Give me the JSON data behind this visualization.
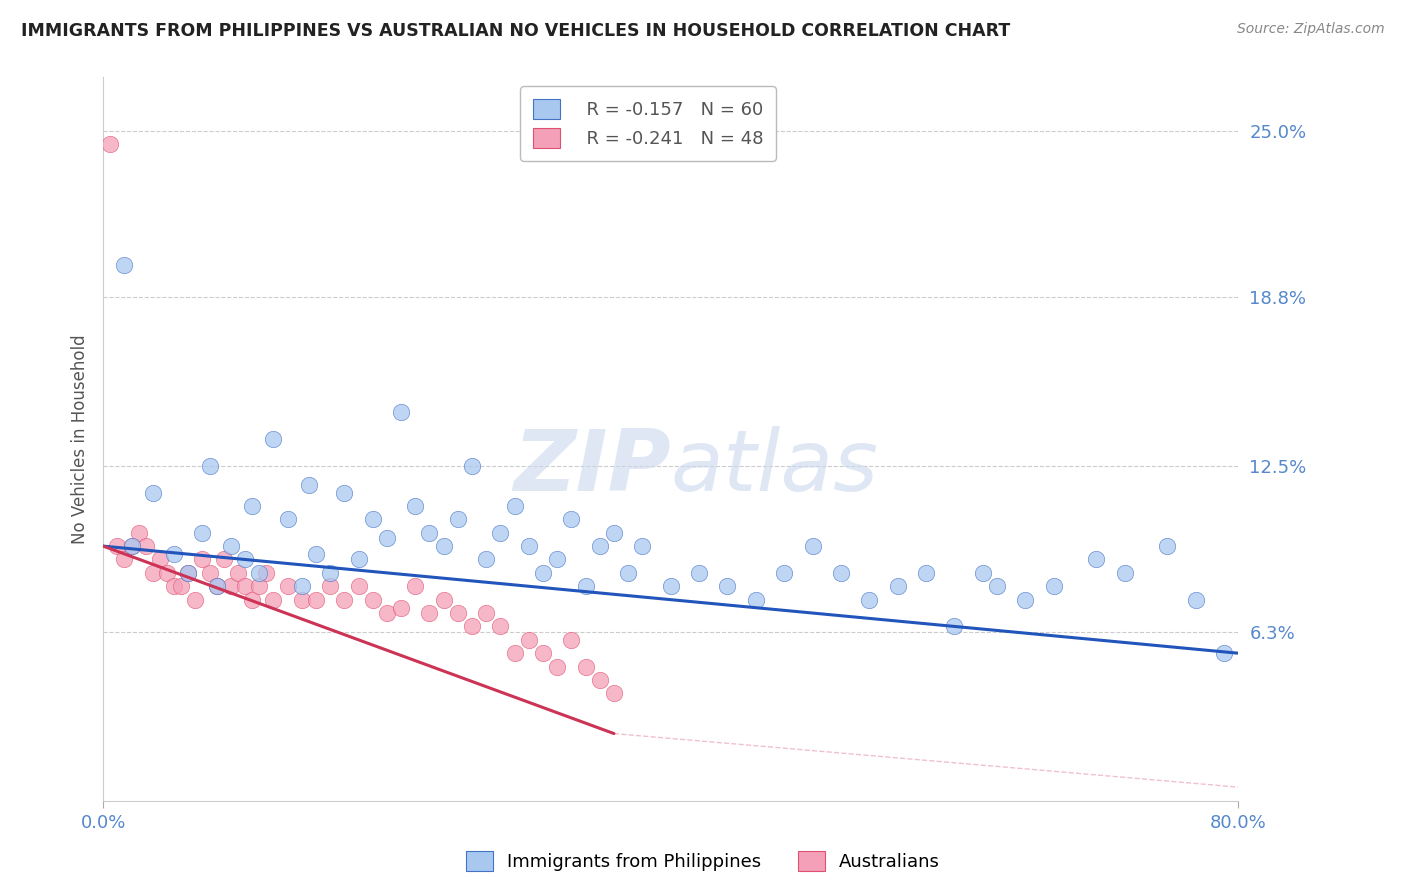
{
  "title": "IMMIGRANTS FROM PHILIPPINES VS AUSTRALIAN NO VEHICLES IN HOUSEHOLD CORRELATION CHART",
  "source": "Source: ZipAtlas.com",
  "ylabel": "No Vehicles in Household",
  "ytick_values": [
    6.3,
    12.5,
    18.8,
    25.0
  ],
  "xmin": 0.0,
  "xmax": 80.0,
  "ymin": 0.0,
  "ymax": 27.0,
  "blue_label": "Immigrants from Philippines",
  "pink_label": "Australians",
  "blue_r": "R = -0.157",
  "blue_n": "N = 60",
  "pink_r": "R = -0.241",
  "pink_n": "N = 48",
  "blue_color": "#a8c8f0",
  "pink_color": "#f4a0b8",
  "blue_edge_color": "#4472c4",
  "pink_edge_color": "#e05070",
  "blue_line_color": "#2255bb",
  "pink_line_color": "#cc3355",
  "title_color": "#222222",
  "source_color": "#888888",
  "axis_label_color": "#555555",
  "tick_color": "#5588cc",
  "grid_color": "#cccccc",
  "watermark_color": "#ccd8ee",
  "blue_scatter_x": [
    1.5,
    2.0,
    3.5,
    5.0,
    6.0,
    7.0,
    7.5,
    8.0,
    9.0,
    10.0,
    10.5,
    11.0,
    12.0,
    13.0,
    14.0,
    14.5,
    15.0,
    16.0,
    17.0,
    18.0,
    19.0,
    20.0,
    21.0,
    22.0,
    23.0,
    24.0,
    25.0,
    26.0,
    27.0,
    28.0,
    29.0,
    30.0,
    31.0,
    32.0,
    33.0,
    34.0,
    35.0,
    36.0,
    37.0,
    38.0,
    40.0,
    42.0,
    44.0,
    46.0,
    48.0,
    50.0,
    52.0,
    54.0,
    56.0,
    58.0,
    60.0,
    62.0,
    63.0,
    65.0,
    67.0,
    70.0,
    72.0,
    75.0,
    77.0,
    79.0
  ],
  "blue_scatter_y": [
    20.0,
    9.5,
    11.5,
    9.2,
    8.5,
    10.0,
    12.5,
    8.0,
    9.5,
    9.0,
    11.0,
    8.5,
    13.5,
    10.5,
    8.0,
    11.8,
    9.2,
    8.5,
    11.5,
    9.0,
    10.5,
    9.8,
    14.5,
    11.0,
    10.0,
    9.5,
    10.5,
    12.5,
    9.0,
    10.0,
    11.0,
    9.5,
    8.5,
    9.0,
    10.5,
    8.0,
    9.5,
    10.0,
    8.5,
    9.5,
    8.0,
    8.5,
    8.0,
    7.5,
    8.5,
    9.5,
    8.5,
    7.5,
    8.0,
    8.5,
    6.5,
    8.5,
    8.0,
    7.5,
    8.0,
    9.0,
    8.5,
    9.5,
    7.5,
    5.5
  ],
  "pink_scatter_x": [
    0.5,
    1.0,
    1.5,
    2.0,
    2.5,
    3.0,
    3.5,
    4.0,
    4.5,
    5.0,
    5.5,
    6.0,
    6.5,
    7.0,
    7.5,
    8.0,
    8.5,
    9.0,
    9.5,
    10.0,
    10.5,
    11.0,
    11.5,
    12.0,
    13.0,
    14.0,
    15.0,
    16.0,
    17.0,
    18.0,
    19.0,
    20.0,
    21.0,
    22.0,
    23.0,
    24.0,
    25.0,
    26.0,
    27.0,
    28.0,
    29.0,
    30.0,
    31.0,
    32.0,
    33.0,
    34.0,
    35.0,
    36.0
  ],
  "pink_scatter_y": [
    24.5,
    9.5,
    9.0,
    9.5,
    10.0,
    9.5,
    8.5,
    9.0,
    8.5,
    8.0,
    8.0,
    8.5,
    7.5,
    9.0,
    8.5,
    8.0,
    9.0,
    8.0,
    8.5,
    8.0,
    7.5,
    8.0,
    8.5,
    7.5,
    8.0,
    7.5,
    7.5,
    8.0,
    7.5,
    8.0,
    7.5,
    7.0,
    7.2,
    8.0,
    7.0,
    7.5,
    7.0,
    6.5,
    7.0,
    6.5,
    5.5,
    6.0,
    5.5,
    5.0,
    6.0,
    5.0,
    4.5,
    4.0
  ],
  "blue_trend_x0": 0.0,
  "blue_trend_x1": 80.0,
  "blue_trend_y0": 9.5,
  "blue_trend_y1": 5.5,
  "pink_trend_x0": 0.0,
  "pink_trend_x1": 36.0,
  "pink_trend_y0": 9.5,
  "pink_trend_y1": 2.5
}
